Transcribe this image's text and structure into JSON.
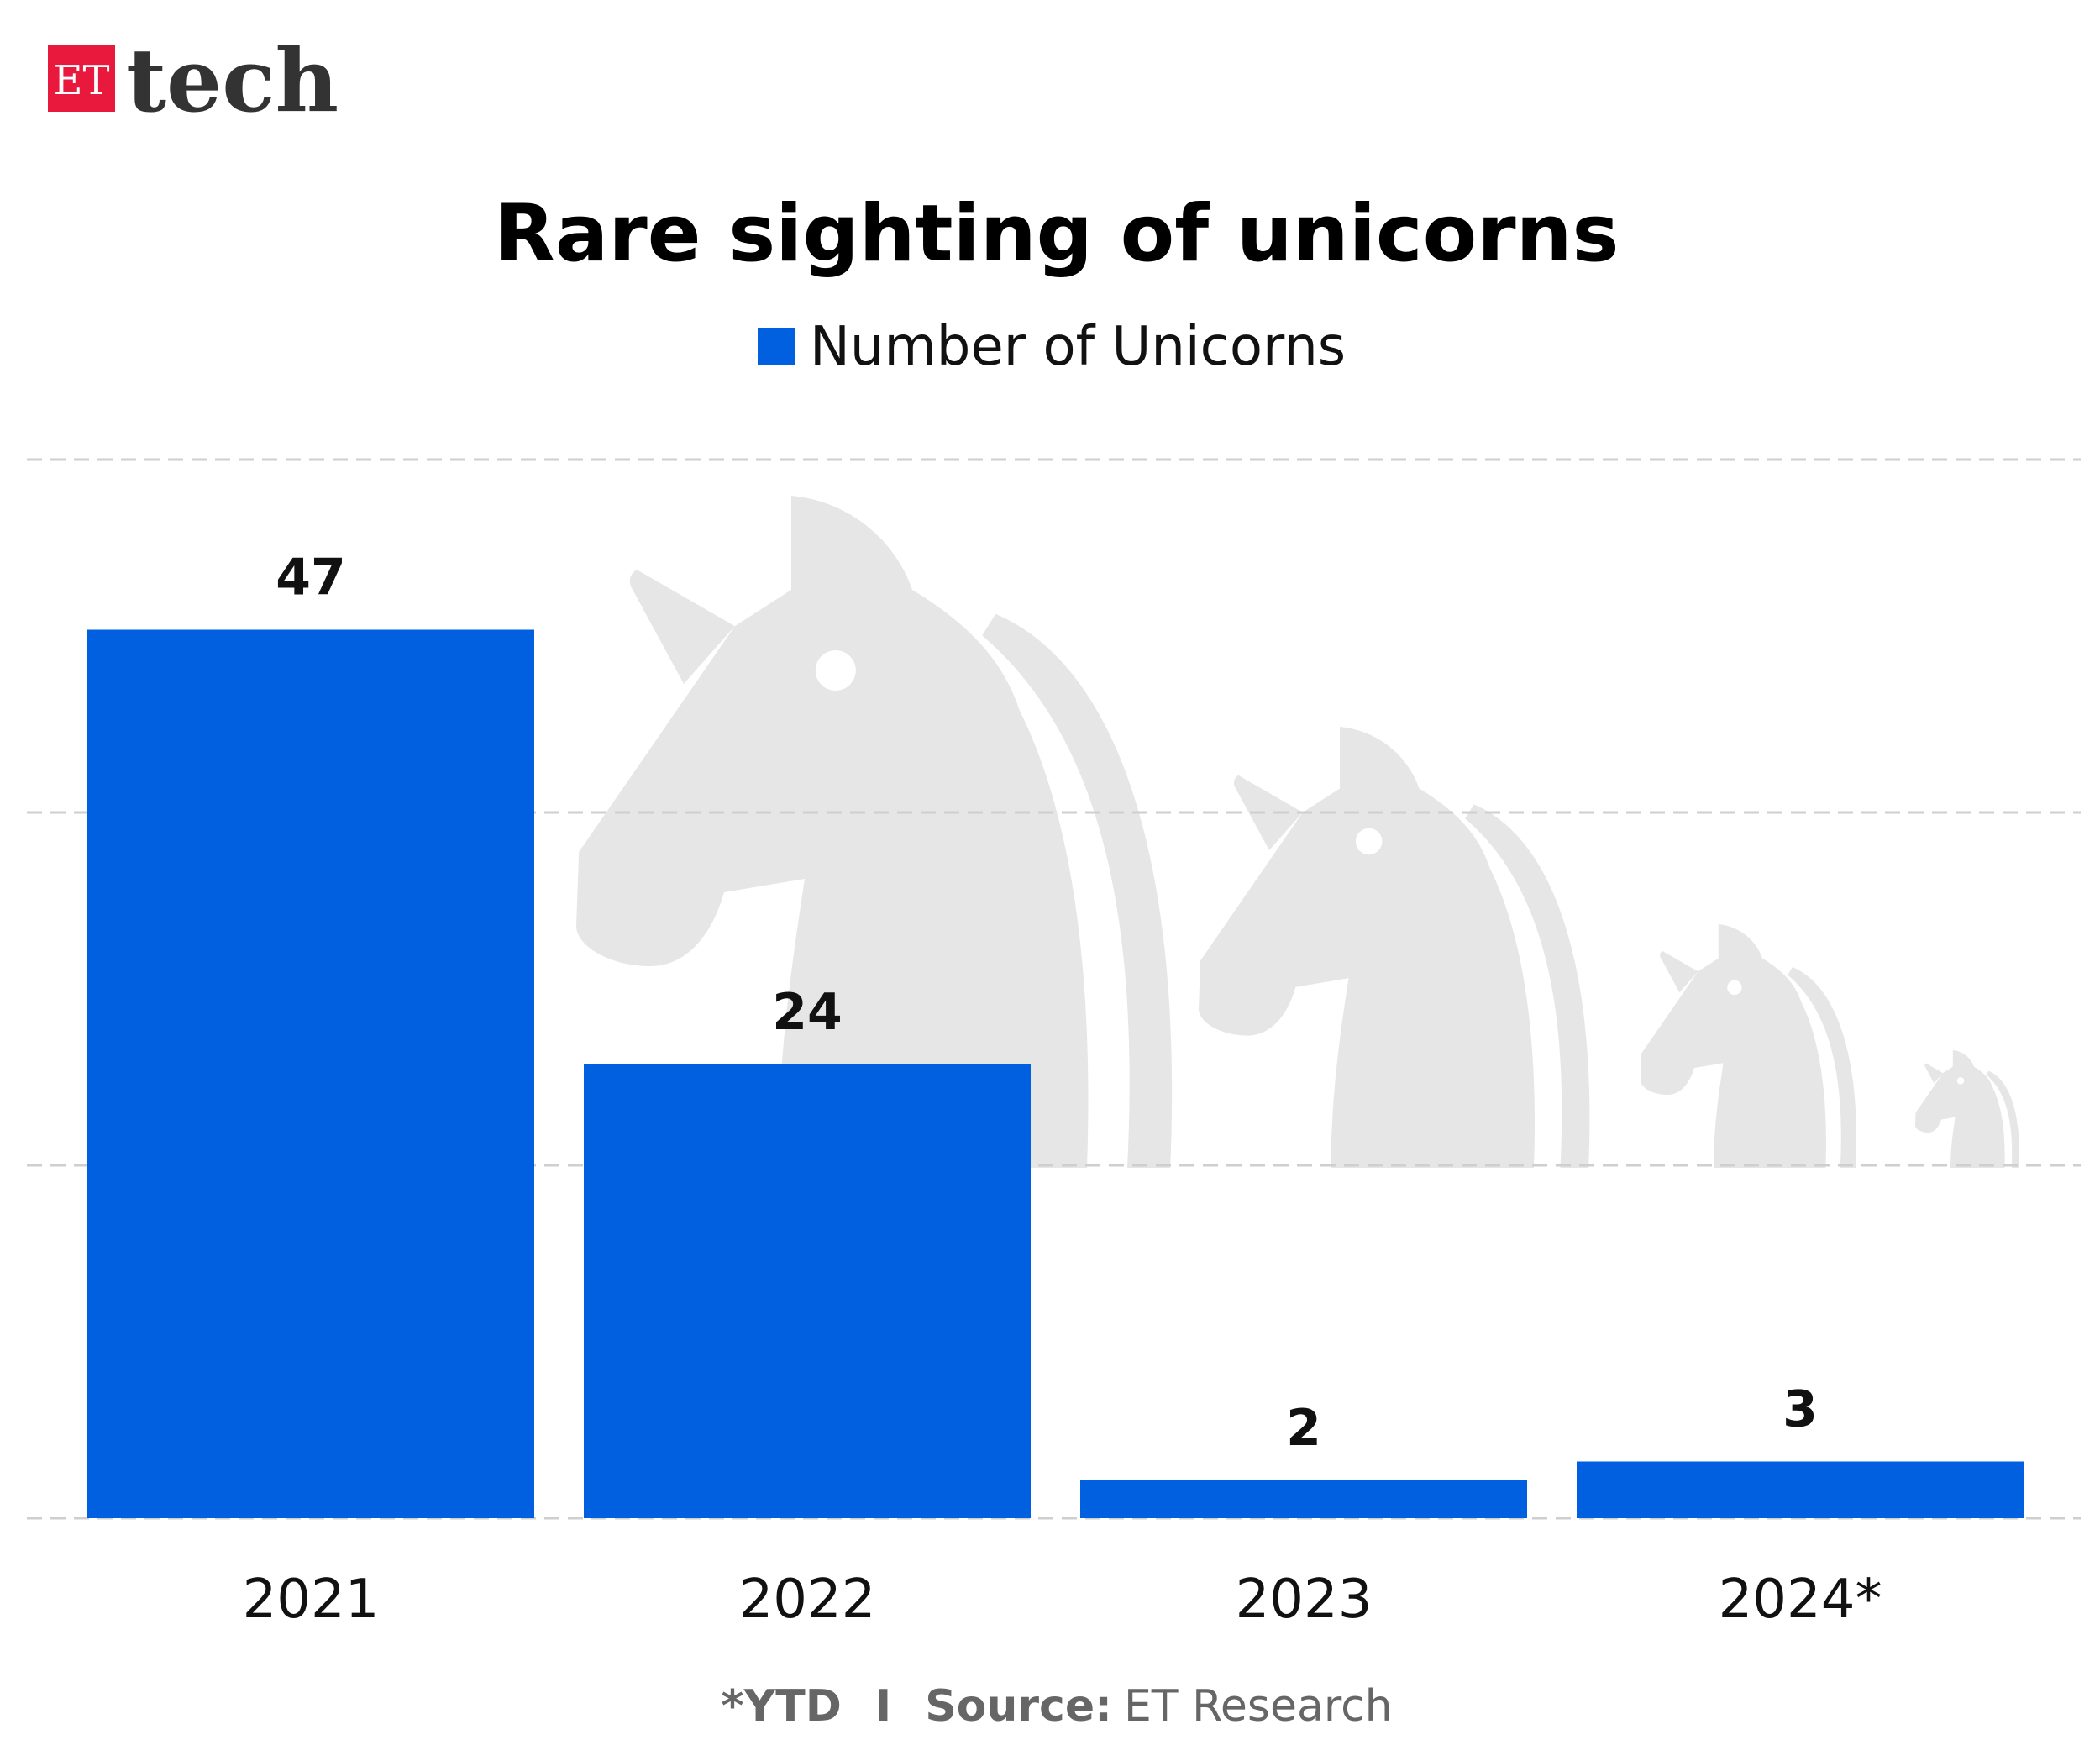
{
  "logo": {
    "badge": "ET",
    "text": "tech",
    "badge_color": "#E8193C"
  },
  "chart_data": {
    "type": "bar",
    "title": "Rare sighting of unicorns",
    "categories": [
      "2021",
      "2022",
      "2023",
      "2024*"
    ],
    "series": [
      {
        "name": "Number of Unicorns",
        "values": [
          47,
          24,
          2,
          3
        ],
        "color": "#0060DF"
      }
    ],
    "data_labels": [
      "47",
      "24",
      "2",
      "3"
    ],
    "ylim": [
      0,
      56
    ],
    "grid": true,
    "legend_placement": "top-center",
    "background_icons": "unicorn-head-silhouettes"
  },
  "footer": {
    "note": "*YTD",
    "separator": "I",
    "source_label": "Source:",
    "source": "ET Research"
  }
}
